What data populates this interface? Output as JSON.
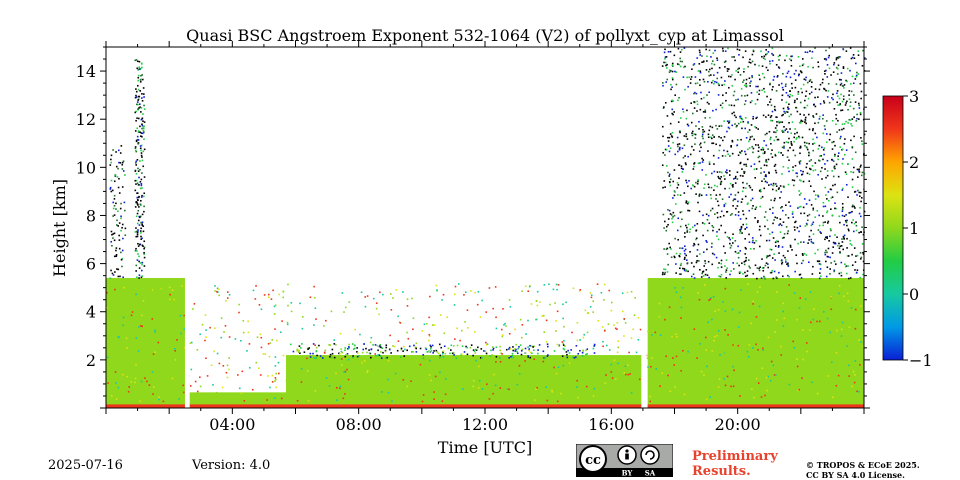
{
  "chart_data": {
    "type": "heatmap",
    "title": "Quasi BSC Angstroem Exponent 532-1064 (V2) of pollyxt_cyp at Limassol",
    "xlabel": "Time [UTC]",
    "ylabel": "Height [km]",
    "xlim_hours": [
      0,
      24
    ],
    "ylim_km": [
      0,
      15
    ],
    "x_ticks": [
      {
        "hour": 4,
        "label": "04:00"
      },
      {
        "hour": 8,
        "label": "08:00"
      },
      {
        "hour": 12,
        "label": "12:00"
      },
      {
        "hour": 16,
        "label": "16:00"
      },
      {
        "hour": 20,
        "label": "20:00"
      }
    ],
    "y_ticks": [
      {
        "km": 2,
        "label": "2"
      },
      {
        "km": 4,
        "label": "4"
      },
      {
        "km": 6,
        "label": "6"
      },
      {
        "km": 8,
        "label": "8"
      },
      {
        "km": 10,
        "label": "10"
      },
      {
        "km": 12,
        "label": "12"
      },
      {
        "km": 14,
        "label": "14"
      }
    ],
    "colorbar": {
      "range": [
        -1,
        3
      ],
      "ticks": [
        {
          "value": 3,
          "label": "3"
        },
        {
          "value": 2,
          "label": "2"
        },
        {
          "value": 1,
          "label": "1"
        },
        {
          "value": 0,
          "label": "0"
        },
        {
          "value": -1,
          "label": "−1"
        }
      ],
      "colors": [
        "#0a1fd6",
        "#0099e6",
        "#17c9a0",
        "#22cc44",
        "#8fd81c",
        "#dce312",
        "#ffa500",
        "#f0361a",
        "#c8001a"
      ]
    },
    "regions": [
      {
        "name": "early-aerosol-layer",
        "x_start": 0.0,
        "x_end": 2.55,
        "top_km": 5.4,
        "value": 1.0
      },
      {
        "name": "low-layer-gap",
        "x_start": 2.55,
        "x_end": 5.7,
        "top_km": 0.65,
        "value": 1.0
      },
      {
        "name": "midday-boundary-layer",
        "x_start": 5.7,
        "x_end": 17.0,
        "top_km": 2.2,
        "value": 1.0
      },
      {
        "name": "evening-aerosol-layer",
        "x_start": 17.15,
        "x_end": 24.0,
        "top_km": 5.4,
        "value": 1.0
      }
    ],
    "gaps_hours": [
      [
        2.5,
        2.65
      ],
      [
        16.95,
        17.12
      ]
    ]
  },
  "footer": {
    "date": "2025-07-16",
    "version": "Version: 4.0",
    "preliminary_line1": "Preliminary",
    "preliminary_line2": "Results.",
    "copyright_line1": "© TROPOS & ECoE 2025.",
    "copyright_line2": "CC BY SA 4.0 License.",
    "badge_cc": "cc",
    "badge_by": "BY",
    "badge_sa": "SA"
  }
}
